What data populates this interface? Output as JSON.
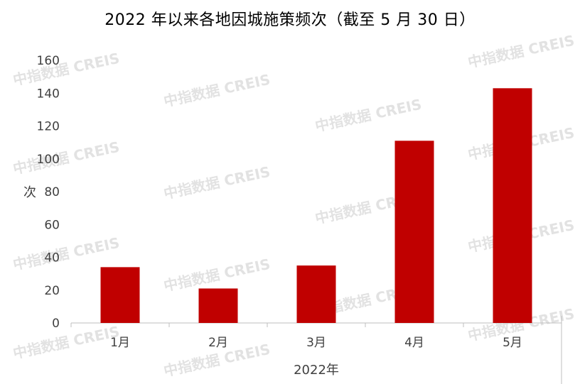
{
  "chart_data": {
    "type": "bar",
    "title": "2022 年以来各地因城施策频次（截至 5 月 30 日）",
    "xlabel": "2022年",
    "ylabel": "次",
    "categories": [
      "1月",
      "2月",
      "3月",
      "4月",
      "5月"
    ],
    "values": [
      34,
      21,
      35,
      111,
      143
    ],
    "ylim": [
      0,
      160
    ],
    "yticks": [
      0,
      20,
      40,
      60,
      80,
      100,
      120,
      140,
      160
    ],
    "grid": false,
    "legend": "none",
    "bar_color": "#c00000"
  },
  "watermark": "中指数据 CREIS"
}
